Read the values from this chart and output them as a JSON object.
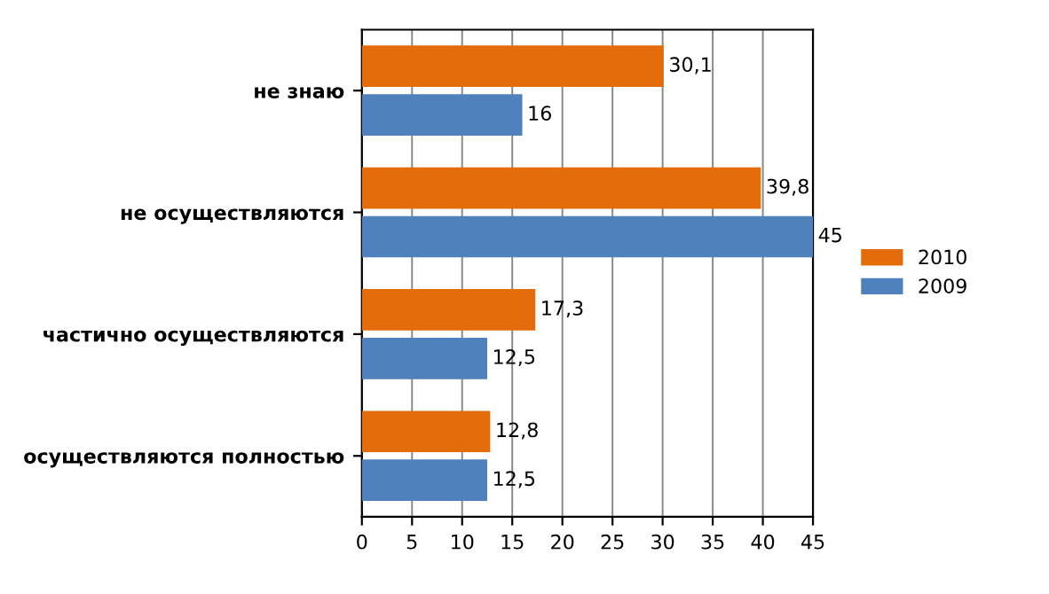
{
  "chart_data": {
    "type": "bar",
    "orientation": "horizontal",
    "categories": [
      "не знаю",
      "не осуществляются",
      "частично осуществляются",
      "осуществляются полностью"
    ],
    "series": [
      {
        "name": "2010",
        "color": "#e46c0a",
        "values": [
          30.1,
          39.8,
          17.3,
          12.8
        ],
        "value_labels": [
          "30,1",
          "39,8",
          "17,3",
          "12,8"
        ]
      },
      {
        "name": "2009",
        "color": "#4f81bd",
        "values": [
          16,
          45,
          12.5,
          12.5
        ],
        "value_labels": [
          "16",
          "45",
          "12,5",
          "12,5"
        ]
      }
    ],
    "xlim": [
      0,
      45
    ],
    "xticks": [
      0,
      5,
      10,
      15,
      20,
      25,
      30,
      35,
      40,
      45
    ],
    "grid": "x",
    "legend": "right"
  }
}
